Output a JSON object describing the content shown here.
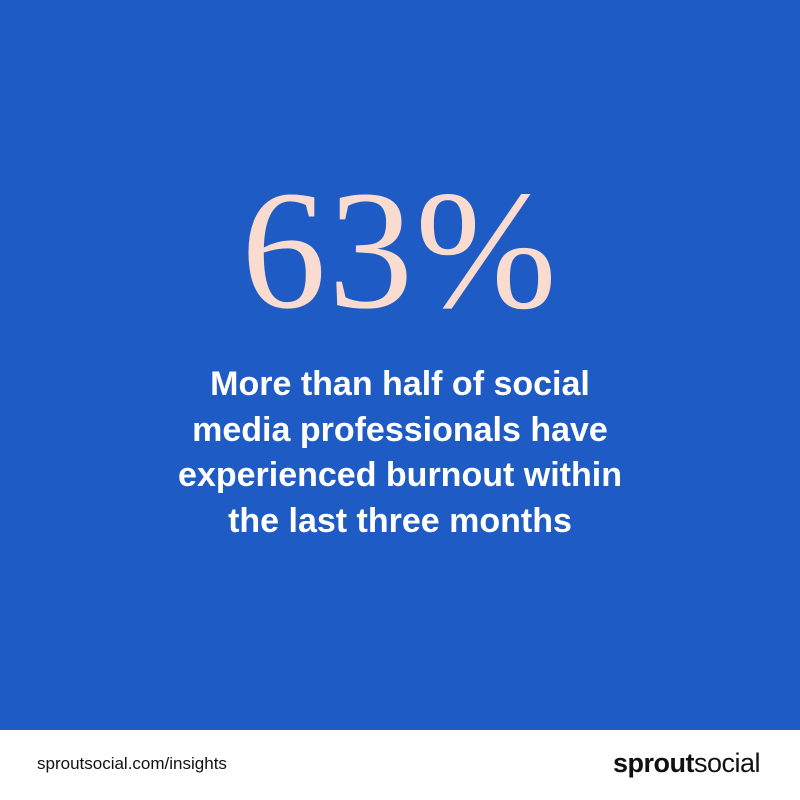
{
  "stat": "63%",
  "description": [
    "More than half of social",
    "media professionals have",
    "experienced burnout within",
    "the last three months"
  ],
  "footer": {
    "url": "sproutsocial.com/insights",
    "logo": {
      "bold": "sprout",
      "regular": "social"
    }
  }
}
